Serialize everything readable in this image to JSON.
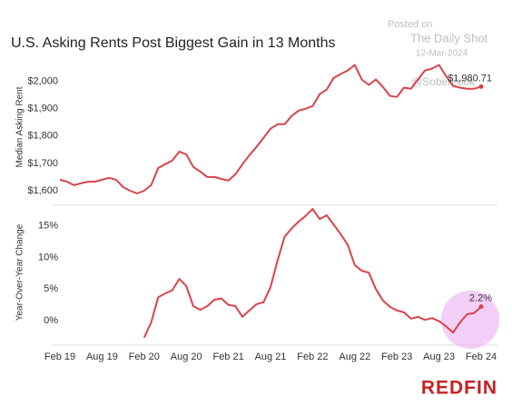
{
  "chart_data": [
    {
      "type": "line",
      "title": "U.S. Asking Rents Post Biggest Gain in 13 Months",
      "y_label": "Median Asking Rent",
      "color": "#d9434b",
      "values": [
        1640,
        1633,
        1620,
        1627,
        1633,
        1633,
        1640,
        1647,
        1640,
        1613,
        1600,
        1590,
        1600,
        1620,
        1683,
        1697,
        1710,
        1743,
        1733,
        1687,
        1670,
        1650,
        1650,
        1643,
        1637,
        1660,
        1697,
        1730,
        1760,
        1793,
        1827,
        1843,
        1843,
        1873,
        1893,
        1900,
        1910,
        1953,
        1970,
        2013,
        2027,
        2040,
        2060,
        2007,
        1987,
        2007,
        1980,
        1947,
        1943,
        1977,
        1973,
        2007,
        2040,
        2047,
        2060,
        2020,
        1983,
        1977,
        1973,
        1973,
        1980.71
      ],
      "value_labels": [
        null,
        null,
        null,
        null,
        null,
        null,
        null,
        null,
        null,
        null,
        null,
        null,
        null,
        null,
        null,
        null,
        null,
        null,
        null,
        null,
        null,
        null,
        null,
        null,
        null,
        null,
        null,
        null,
        null,
        null,
        null,
        null,
        null,
        null,
        null,
        null,
        null,
        null,
        null,
        null,
        null,
        null,
        null,
        null,
        null,
        null,
        null,
        null,
        null,
        null,
        null,
        null,
        null,
        null,
        null,
        null,
        null,
        null,
        null,
        null,
        "$1,980.71"
      ],
      "ylim": [
        1550,
        2115
      ],
      "yticks": [
        {
          "value": 1600,
          "label": "$1,600"
        },
        {
          "value": 1700,
          "label": "$1,700"
        },
        {
          "value": 1800,
          "label": "$1,800"
        },
        {
          "value": 1900,
          "label": "$1,900"
        },
        {
          "value": 2000,
          "label": "$2,000"
        }
      ]
    },
    {
      "type": "line",
      "y_label": "Year-Over-Year Change",
      "color": "#d9434b",
      "categories": [
        "Feb 19",
        null,
        null,
        null,
        null,
        null,
        "Aug 19",
        null,
        null,
        null,
        null,
        null,
        "Feb 20",
        null,
        null,
        null,
        null,
        null,
        "Aug 20",
        null,
        null,
        null,
        null,
        null,
        "Feb 21",
        null,
        null,
        null,
        null,
        null,
        "Aug 21",
        null,
        null,
        null,
        null,
        null,
        "Feb 22",
        null,
        null,
        null,
        null,
        null,
        "Aug 22",
        null,
        null,
        null,
        null,
        null,
        "Feb 23",
        null,
        null,
        null,
        null,
        null,
        "Aug 23",
        null,
        null,
        null,
        null,
        null,
        "Feb 24"
      ],
      "values": [
        null,
        null,
        null,
        null,
        null,
        null,
        null,
        null,
        null,
        null,
        null,
        null,
        -2.7,
        -0.3,
        3.7,
        4.3,
        4.8,
        6.6,
        5.5,
        2.3,
        1.7,
        2.3,
        3.3,
        3.5,
        2.5,
        2.3,
        0.6,
        1.6,
        2.6,
        2.9,
        5.3,
        9.5,
        13.3,
        14.6,
        15.7,
        16.6,
        17.7,
        16.1,
        16.7,
        15.2,
        13.7,
        12.0,
        8.8,
        7.9,
        7.6,
        5.0,
        3.2,
        2.2,
        1.6,
        1.3,
        0.3,
        0.6,
        0.1,
        0.4,
        -0.1,
        -0.9,
        -1.9,
        -0.3,
        1.0,
        1.2,
        2.2
      ],
      "value_labels": [
        null,
        null,
        null,
        null,
        null,
        null,
        null,
        null,
        null,
        null,
        null,
        null,
        null,
        null,
        null,
        null,
        null,
        null,
        null,
        null,
        null,
        null,
        null,
        null,
        null,
        null,
        null,
        null,
        null,
        null,
        null,
        null,
        null,
        null,
        null,
        null,
        null,
        null,
        null,
        null,
        null,
        null,
        null,
        null,
        null,
        null,
        null,
        null,
        null,
        null,
        null,
        null,
        null,
        null,
        null,
        null,
        null,
        null,
        null,
        null,
        "2.2%"
      ],
      "ylim": [
        -3.9,
        18
      ],
      "yticks": [
        {
          "value": 0,
          "label": "0%"
        },
        {
          "value": 5,
          "label": "5%"
        },
        {
          "value": 10,
          "label": "10%"
        },
        {
          "value": 15,
          "label": "15%"
        }
      ]
    }
  ],
  "watermark": [
    "Posted on",
    "The Daily Shot",
    "12-Mar-2024",
    "@SoberLook"
  ],
  "logo": "REDFIN"
}
